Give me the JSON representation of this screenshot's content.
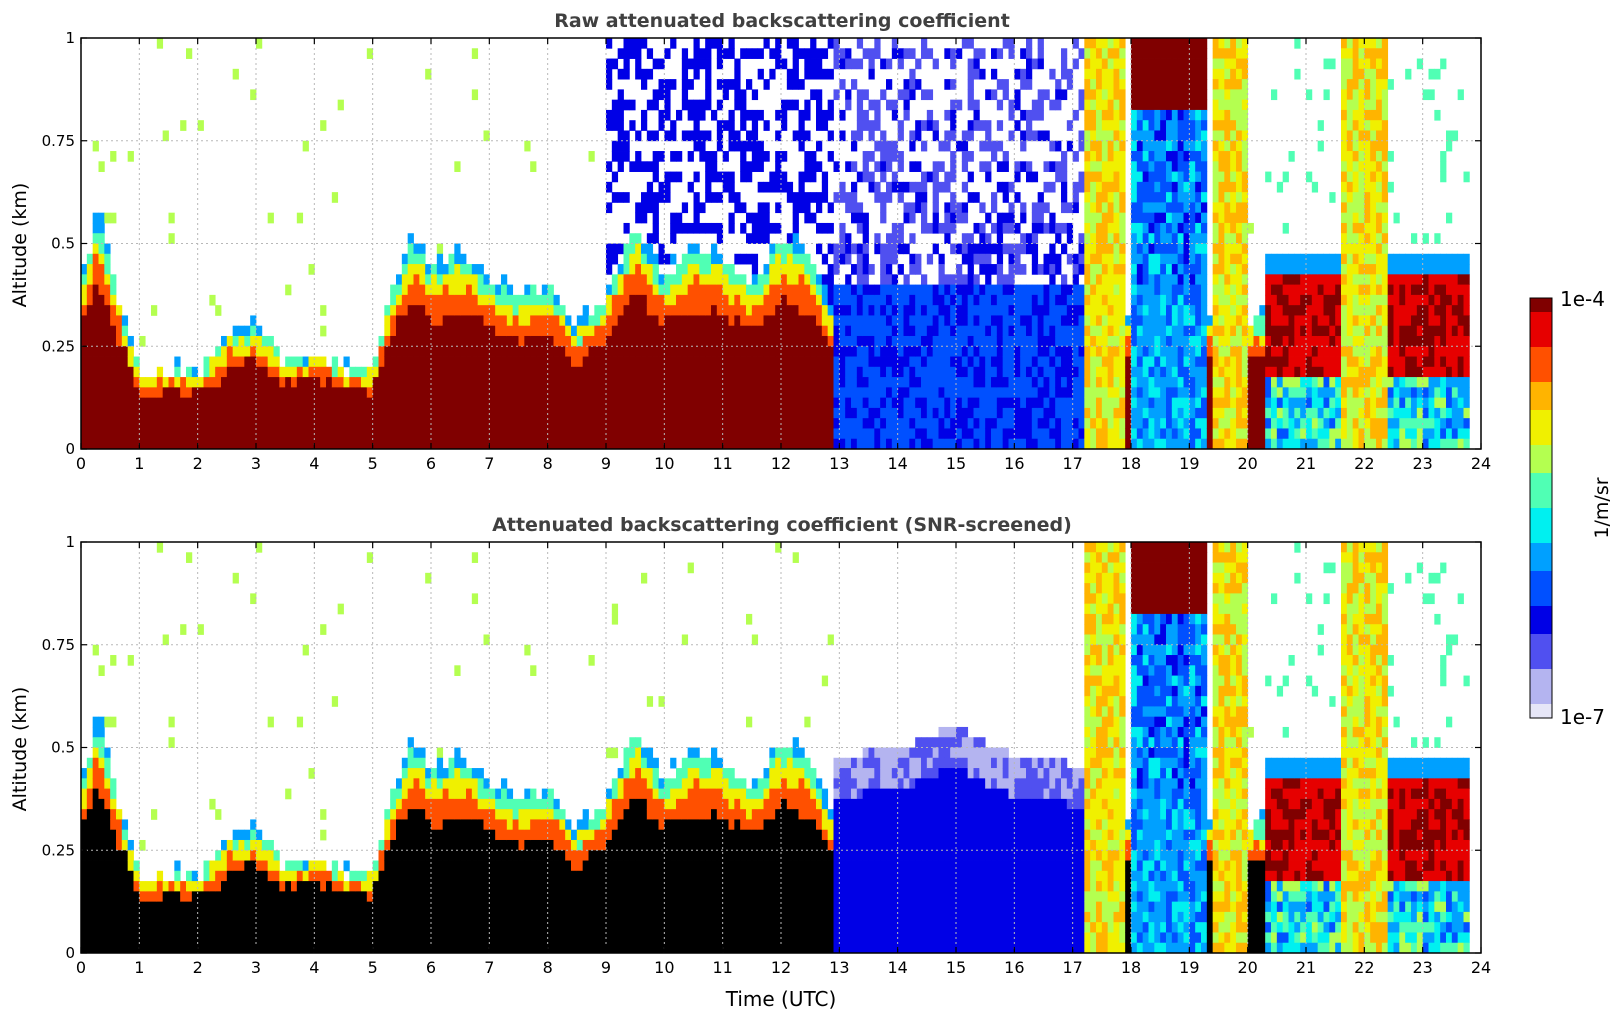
{
  "colors": {
    "title": "#404040",
    "grid": "#b8b8b8",
    "colormap": [
      "#ffffff",
      "#e6e6f7",
      "#b4b4f0",
      "#5050f0",
      "#0000e6",
      "#0050ff",
      "#00a0ff",
      "#00f0f0",
      "#50ffb4",
      "#b4ff50",
      "#f0f000",
      "#ffb400",
      "#ff5000",
      "#e60000",
      "#800000"
    ],
    "screened_saturation": "#000000"
  },
  "chart_data": [
    {
      "type": "heatmap",
      "title": "Raw attenuated backscattering coefficient",
      "xlabel": "",
      "ylabel": "Altitude (km)",
      "xlim": [
        0,
        24
      ],
      "ylim": [
        0,
        1
      ],
      "xticks": [
        "0",
        "1",
        "2",
        "3",
        "4",
        "5",
        "6",
        "7",
        "8",
        "9",
        "10",
        "11",
        "12",
        "13",
        "14",
        "15",
        "16",
        "17",
        "18",
        "19",
        "20",
        "21",
        "22",
        "23",
        "24"
      ],
      "yticks": [
        "0",
        "0.25",
        "0.5",
        "0.75",
        "1"
      ],
      "grid": true,
      "data_extent_hours": [
        0,
        23.8
      ],
      "boundary_layer_top_km": {
        "x": [
          0,
          0.3,
          0.7,
          1,
          1.5,
          2,
          2.5,
          3,
          3.5,
          4,
          4.5,
          5,
          5.3,
          5.7,
          6,
          6.5,
          7,
          7.5,
          8,
          8.5,
          9,
          9.5,
          10,
          10.5,
          11,
          11.5,
          12,
          12.5,
          12.9
        ],
        "y": [
          0.42,
          0.58,
          0.35,
          0.18,
          0.2,
          0.18,
          0.28,
          0.3,
          0.22,
          0.24,
          0.2,
          0.2,
          0.38,
          0.52,
          0.45,
          0.48,
          0.42,
          0.38,
          0.4,
          0.3,
          0.38,
          0.55,
          0.42,
          0.5,
          0.48,
          0.4,
          0.52,
          0.48,
          0.32
        ]
      },
      "high_backscatter_bands_hours": [
        [
          17.2,
          17.9
        ],
        [
          19.4,
          20.0
        ],
        [
          21.6,
          22.4
        ]
      ],
      "upper_cloud_hours": [
        [
          18.0,
          19.3
        ]
      ],
      "residual_layer": {
        "hours": [
          20.3,
          23.8
        ],
        "altitude_km": [
          0.18,
          0.43
        ]
      },
      "noise_hours": [
        [
          9.0,
          17.0
        ]
      ]
    },
    {
      "type": "heatmap",
      "title": "Attenuated backscattering coefficient (SNR-screened)",
      "xlabel": "Time (UTC)",
      "ylabel": "Altitude (km)",
      "xlim": [
        0,
        24
      ],
      "ylim": [
        0,
        1
      ],
      "xticks": [
        "0",
        "1",
        "2",
        "3",
        "4",
        "5",
        "6",
        "7",
        "8",
        "9",
        "10",
        "11",
        "12",
        "13",
        "14",
        "15",
        "16",
        "17",
        "18",
        "19",
        "20",
        "21",
        "22",
        "23",
        "24"
      ],
      "yticks": [
        "0",
        "0.25",
        "0.5",
        "0.75",
        "1"
      ],
      "grid": true,
      "data_extent_hours": [
        0,
        23.8
      ],
      "screened_top_km": {
        "x": [
          13,
          14,
          15,
          16,
          17
        ],
        "y": [
          0.48,
          0.5,
          0.55,
          0.48,
          0.46
        ]
      }
    }
  ],
  "colorbar": {
    "label": "1/m/sr",
    "max_label": "1e-4",
    "min_label": "1e-7",
    "scale": "log",
    "range": [
      1e-07,
      0.0001
    ]
  }
}
